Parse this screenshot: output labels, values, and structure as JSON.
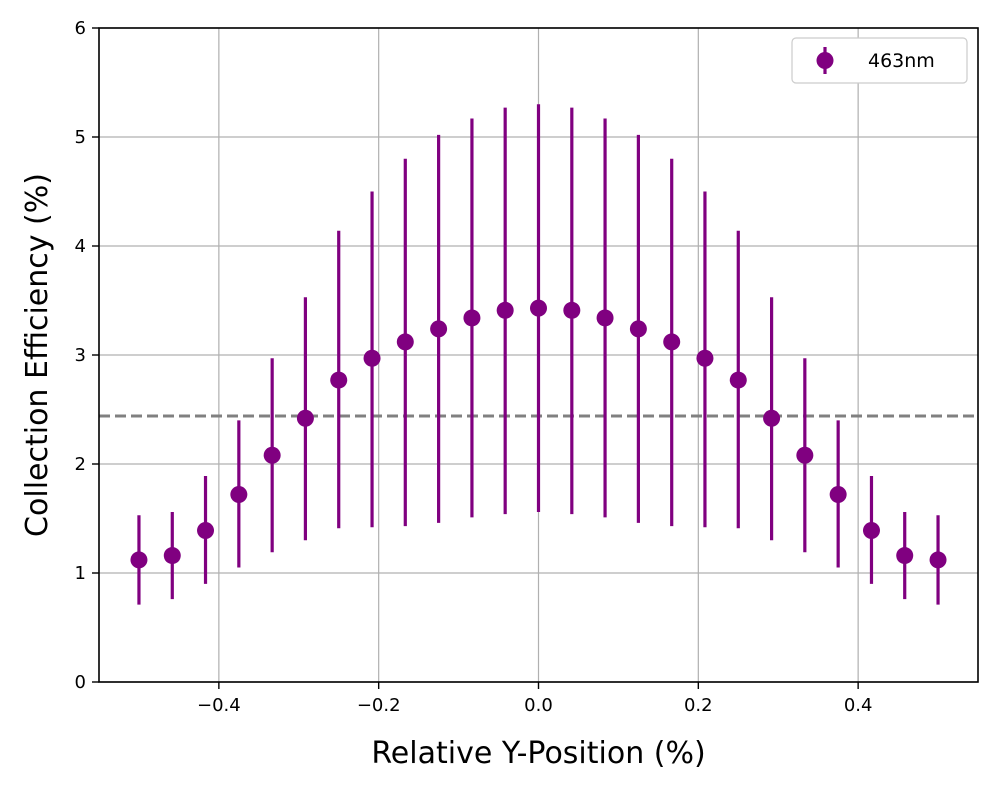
{
  "chart_data": {
    "type": "scatter",
    "xlabel": "Relative Y-Position (%)",
    "ylabel": "Collection Efficiency (%)",
    "xlim": [
      -0.55,
      0.55
    ],
    "ylim": [
      0,
      6
    ],
    "xticks": [
      -0.4,
      -0.2,
      0.0,
      0.2,
      0.4
    ],
    "xtick_labels": [
      "−0.4",
      "−0.2",
      "0.0",
      "0.2",
      "0.4"
    ],
    "yticks": [
      0,
      1,
      2,
      3,
      4,
      5,
      6
    ],
    "ytick_labels": [
      "0",
      "1",
      "2",
      "3",
      "4",
      "5",
      "6"
    ],
    "grid": true,
    "legend": {
      "position": "top-right",
      "entries": [
        "463nm"
      ]
    },
    "reference_line": {
      "y": 2.44,
      "style": "dashed",
      "color": "#808080"
    },
    "series": [
      {
        "name": "463nm",
        "color": "#800080",
        "x": [
          -0.5,
          -0.4583,
          -0.4167,
          -0.375,
          -0.3333,
          -0.2917,
          -0.25,
          -0.2083,
          -0.1667,
          -0.125,
          -0.0833,
          -0.0417,
          0.0,
          0.0417,
          0.0833,
          0.125,
          0.1667,
          0.2083,
          0.25,
          0.2917,
          0.3333,
          0.375,
          0.4167,
          0.4583,
          0.5
        ],
        "y": [
          1.12,
          1.16,
          1.39,
          1.72,
          2.08,
          2.42,
          2.77,
          2.97,
          3.12,
          3.24,
          3.34,
          3.41,
          3.43,
          3.41,
          3.34,
          3.24,
          3.12,
          2.97,
          2.77,
          2.42,
          2.08,
          1.72,
          1.39,
          1.16,
          1.12
        ],
        "y_low": [
          0.71,
          0.76,
          0.9,
          1.05,
          1.19,
          1.3,
          1.41,
          1.42,
          1.43,
          1.46,
          1.51,
          1.54,
          1.56,
          1.54,
          1.51,
          1.46,
          1.43,
          1.42,
          1.41,
          1.3,
          1.19,
          1.05,
          0.9,
          0.76,
          0.71
        ],
        "y_high": [
          1.53,
          1.56,
          1.89,
          2.4,
          2.97,
          3.53,
          4.14,
          4.5,
          4.8,
          5.02,
          5.17,
          5.27,
          5.3,
          5.27,
          5.17,
          5.02,
          4.8,
          4.5,
          4.14,
          3.53,
          2.97,
          2.4,
          1.89,
          1.56,
          1.53
        ]
      }
    ]
  }
}
